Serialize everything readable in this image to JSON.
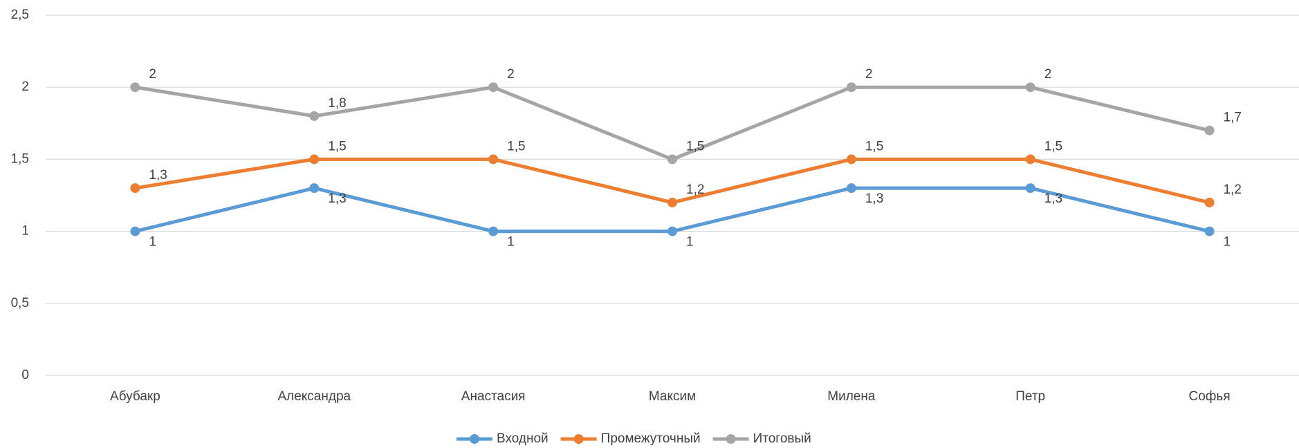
{
  "chart_data": {
    "type": "line",
    "categories": [
      "Абубакр",
      "Александра",
      "Анастасия",
      "Максим",
      "Милена",
      "Петр",
      "Софья"
    ],
    "series": [
      {
        "name": "Входной",
        "color": "#5b9bd5",
        "values": [
          1,
          1.3,
          1,
          1,
          1.3,
          1.3,
          1
        ],
        "value_labels": [
          "1",
          "1,3",
          "1",
          "1",
          "1,3",
          "1,3",
          "1"
        ]
      },
      {
        "name": "Промежуточный",
        "color": "#ed7d31",
        "values": [
          1.3,
          1.5,
          1.5,
          1.2,
          1.5,
          1.5,
          1.2
        ],
        "value_labels": [
          "1,3",
          "1,5",
          "1,5",
          "1,2",
          "1,5",
          "1,5",
          "1,2"
        ]
      },
      {
        "name": "Итоговый",
        "color": "#a5a5a5",
        "values": [
          2,
          1.8,
          2,
          1.5,
          2,
          2,
          1.7
        ],
        "value_labels": [
          "2",
          "1,8",
          "2",
          "1,5",
          "2",
          "2",
          "1,7"
        ]
      }
    ],
    "ylim": [
      0,
      2.5
    ],
    "yticks": [
      0,
      {
        "value": 0.5,
        "label": "0,5"
      },
      1,
      {
        "value": 1.5,
        "label": "1,5"
      },
      2,
      {
        "value": 2.5,
        "label": "2,5"
      }
    ],
    "grid": true,
    "legend": "bottom"
  }
}
